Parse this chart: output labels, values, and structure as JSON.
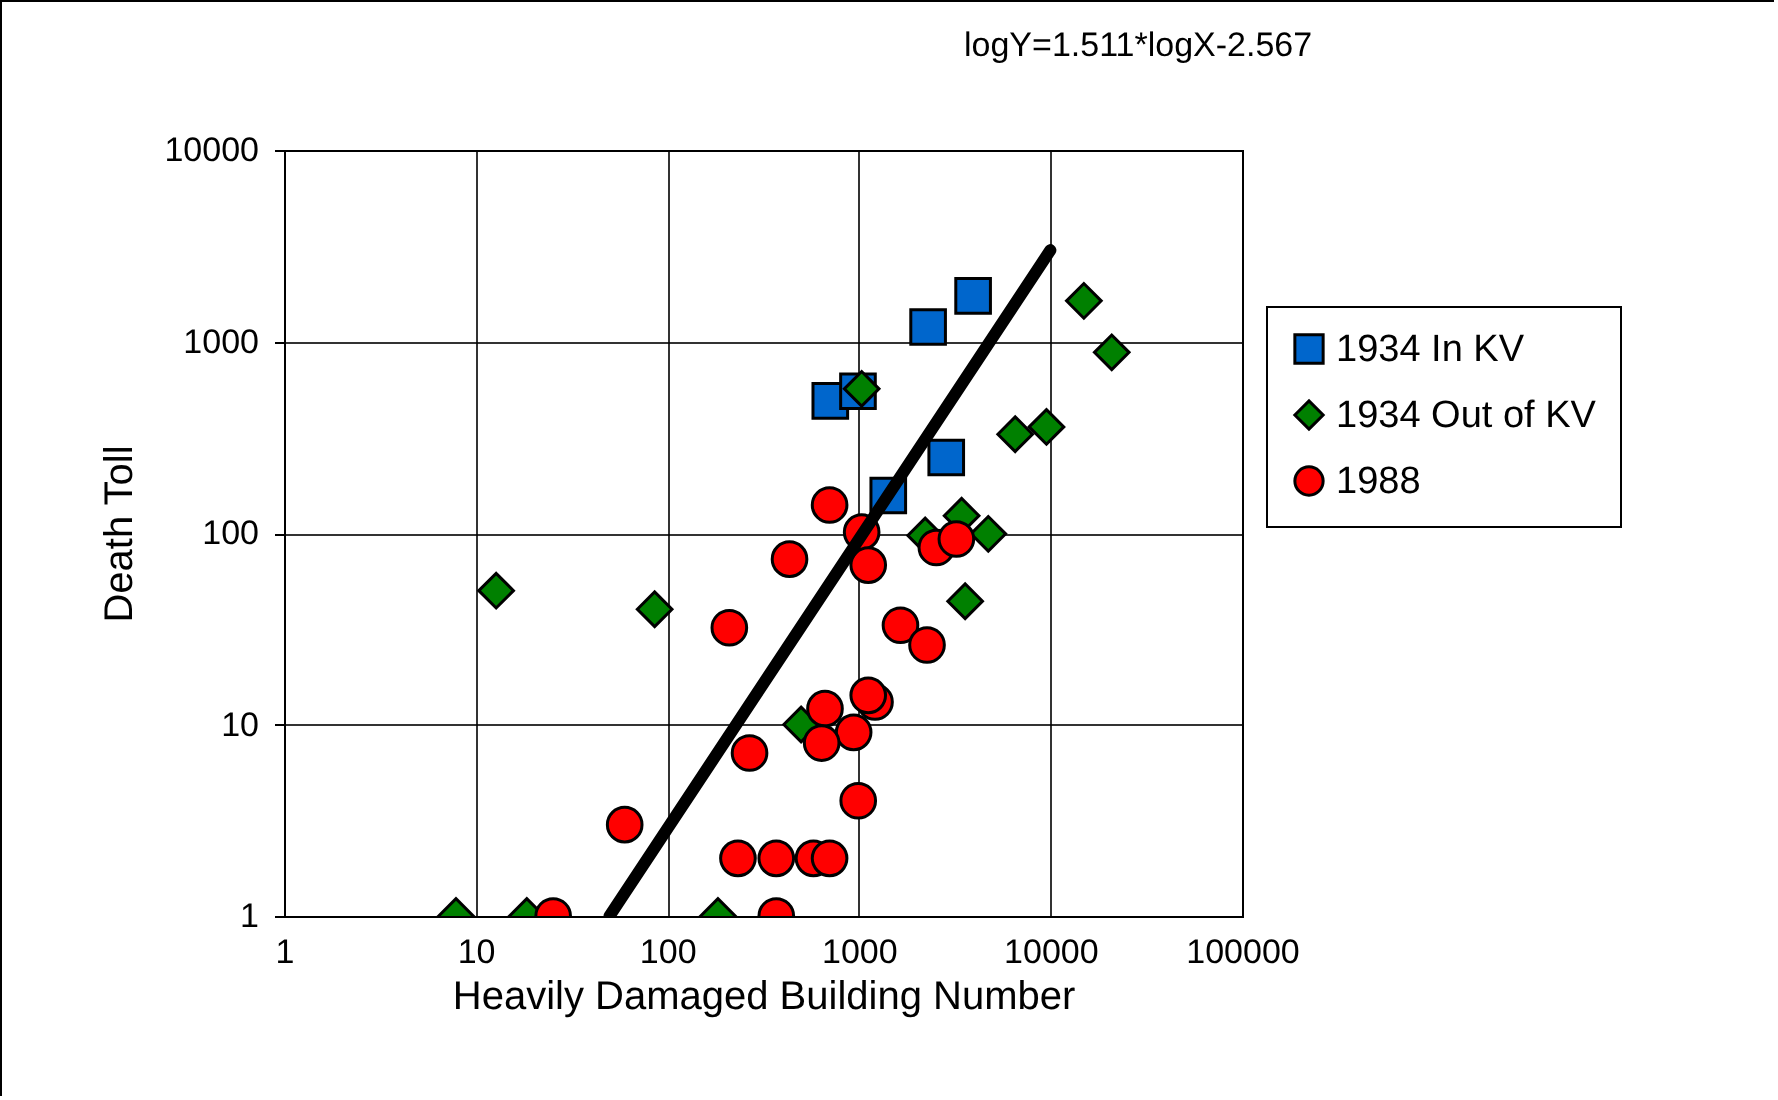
{
  "chart_data": {
    "type": "scatter",
    "xlabel": "Heavily Damaged Building Number",
    "ylabel": "Death Toll",
    "log": "xy",
    "grid": true,
    "legend": "right",
    "xlim": [
      1,
      100000
    ],
    "xticks": [
      1,
      10,
      100,
      1000,
      10000,
      100000
    ],
    "ylim": [
      1,
      10000
    ],
    "yticks": [
      1,
      10,
      100,
      1000,
      10000
    ],
    "annotations": [
      "logY=1.511*logX-2.567"
    ],
    "series": [
      {
        "name": "1934 In KV",
        "color": "#0066cc",
        "marker": "square",
        "x": [
          710,
          990,
          2300,
          3950,
          2860,
          1425
        ],
        "values": [
          490,
          550,
          1190,
          1730,
          248,
          157
        ]
      },
      {
        "name": "1934 Out of KV",
        "color": "#008000",
        "marker": "diamond",
        "x": [
          1035,
          14950,
          20900,
          6550,
          9540,
          2220,
          3440,
          4740,
          3590,
          12.8,
          86,
          500,
          7.9,
          18.5,
          184
        ],
        "values": [
          566,
          1630,
          878,
          328,
          358,
          97,
          123,
          99,
          44,
          50,
          40,
          10,
          1,
          1,
          1
        ]
      },
      {
        "name": "1988",
        "color": "#ff0000",
        "marker": "circle",
        "x": [
          704,
          1035,
          435,
          1120,
          2540,
          3230,
          211,
          1650,
          2270,
          1215,
          1120,
          666,
          940,
          640,
          269,
          993,
          60,
          234,
          371,
          580,
          704,
          25.4,
          371
        ],
        "values": [
          140,
          101,
          73,
          68,
          84,
          93,
          32,
          33,
          26,
          13.1,
          14.2,
          12.1,
          9.1,
          8,
          7.1,
          4,
          3,
          2,
          2,
          2,
          2,
          1,
          1
        ]
      },
      {
        "type": "line",
        "color": "#000000",
        "x": [
          50,
          10000
        ],
        "values": [
          1,
          3000
        ]
      }
    ]
  }
}
